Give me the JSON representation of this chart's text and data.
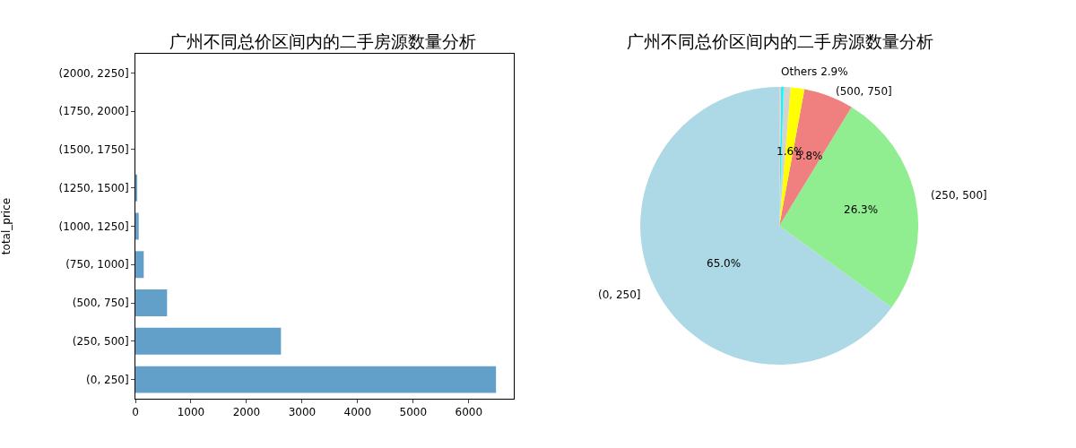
{
  "chart_data": [
    {
      "type": "bar",
      "orientation": "horizontal",
      "title": "广州不同总价区间内的二手房源数量分析",
      "ylabel": "total_price",
      "categories": [
        "(2000, 2250]",
        "(1750, 2000]",
        "(1500, 1750]",
        "(1250, 1500]",
        "(1000, 1250]",
        "(750, 1000]",
        "(500, 750]",
        "(250, 500]",
        "(0, 250]"
      ],
      "values": [
        0,
        0,
        0,
        20,
        60,
        150,
        570,
        2620,
        6490
      ],
      "color": "#62a0ca",
      "xlim": [
        0,
        6810
      ],
      "xticks": [
        0,
        1000,
        2000,
        3000,
        4000,
        5000,
        6000
      ],
      "grid": false,
      "legend": false
    },
    {
      "type": "pie",
      "title": "广州不同总价区间内的二手房源数量分析",
      "categories": [
        "(0, 250]",
        "(250, 500]",
        "(500, 750]",
        null,
        null,
        null,
        null
      ],
      "values": [
        65.0,
        26.3,
        5.8,
        1.6,
        0.8,
        0.3,
        0.2
      ],
      "colors": [
        "#add8e6",
        "#90ee90",
        "#f08080",
        "#ffff00",
        "#d3d3d3",
        "#00ffff",
        "#ffc0cb"
      ],
      "value_labels": [
        "65.0%",
        "26.3%",
        "5.8%",
        "1.6%",
        null,
        null,
        null
      ],
      "annotations": [
        "Others 2.9%"
      ],
      "legend": false
    }
  ]
}
